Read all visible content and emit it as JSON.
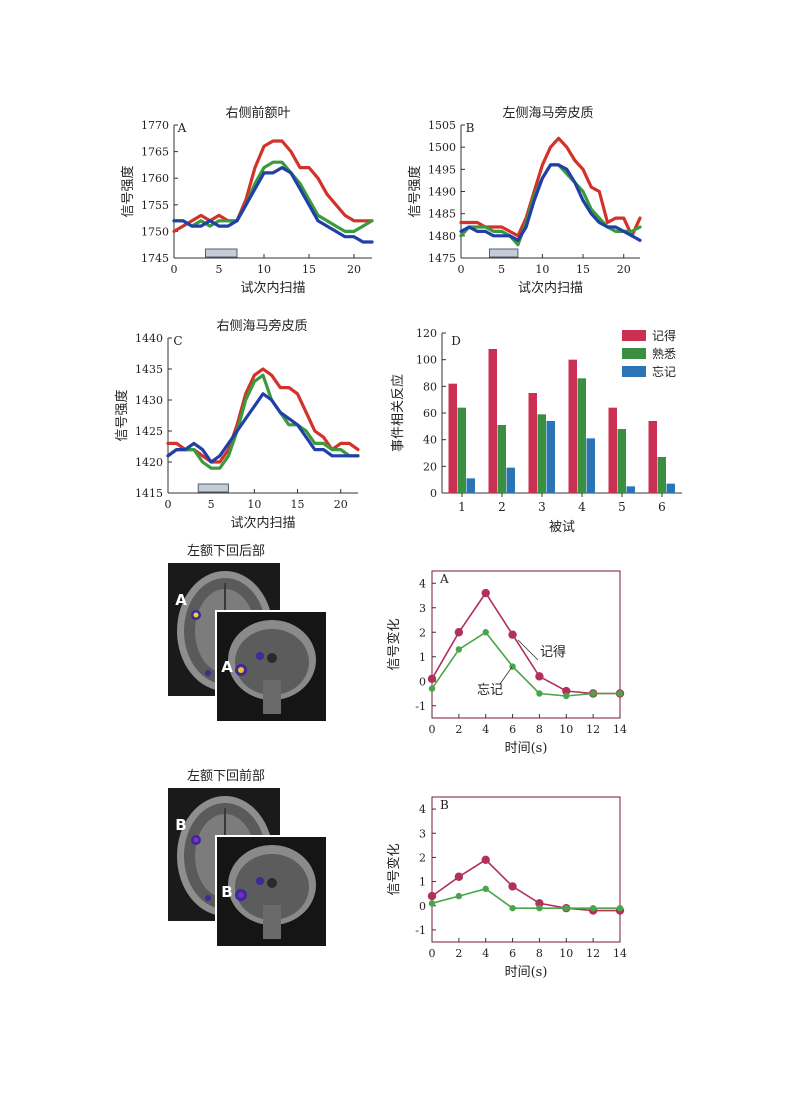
{
  "chart_data": [
    {
      "id": "A",
      "type": "line",
      "title": "右侧前额叶",
      "panel_label": "A",
      "xlabel": "试次内扫描",
      "ylabel": "信号强度",
      "xlim": [
        0,
        22
      ],
      "ylim": [
        1745,
        1770
      ],
      "xticks": [
        "0",
        "5",
        "10",
        "15",
        "20"
      ],
      "yticks": [
        "1745",
        "1750",
        "1755",
        "1760",
        "1765",
        "1770"
      ],
      "stimulus_bar": [
        3.5,
        7
      ],
      "series": [
        {
          "name": "记得",
          "color": "#d2322a",
          "x": [
            0,
            1,
            2,
            3,
            4,
            5,
            6,
            7,
            8,
            9,
            10,
            11,
            12,
            13,
            14,
            15,
            16,
            17,
            18,
            19,
            20,
            21,
            22
          ],
          "y": [
            1750,
            1751,
            1752,
            1753,
            1752,
            1753,
            1752,
            1752,
            1756,
            1762,
            1766,
            1767,
            1767,
            1765,
            1762,
            1762,
            1760,
            1757,
            1755,
            1753,
            1752,
            1752,
            1752
          ]
        },
        {
          "name": "熟悉",
          "color": "#3b9a3b",
          "x": [
            0,
            1,
            2,
            3,
            4,
            5,
            6,
            7,
            8,
            9,
            10,
            11,
            12,
            13,
            14,
            15,
            16,
            17,
            18,
            19,
            20,
            21,
            22
          ],
          "y": [
            1752,
            1752,
            1751,
            1752,
            1751,
            1752,
            1752,
            1752,
            1755,
            1759,
            1762,
            1763,
            1763,
            1761,
            1759,
            1756,
            1753,
            1752,
            1751,
            1750,
            1750,
            1751,
            1752
          ]
        },
        {
          "name": "忘记",
          "color": "#2040a8",
          "x": [
            0,
            1,
            2,
            3,
            4,
            5,
            6,
            7,
            8,
            9,
            10,
            11,
            12,
            13,
            14,
            15,
            16,
            17,
            18,
            19,
            20,
            21,
            22
          ],
          "y": [
            1752,
            1752,
            1751,
            1751,
            1752,
            1751,
            1751,
            1752,
            1755,
            1758,
            1761,
            1761,
            1762,
            1761,
            1758,
            1755,
            1752,
            1751,
            1750,
            1749,
            1749,
            1748,
            1748
          ]
        }
      ]
    },
    {
      "id": "B",
      "type": "line",
      "title": "左侧海马旁皮质",
      "panel_label": "B",
      "xlabel": "试次内扫描",
      "ylabel": "信号强度",
      "xlim": [
        0,
        22
      ],
      "ylim": [
        1475,
        1505
      ],
      "xticks": [
        "0",
        "5",
        "10",
        "15",
        "20"
      ],
      "yticks": [
        "1475",
        "1480",
        "1485",
        "1490",
        "1495",
        "1500",
        "1505"
      ],
      "stimulus_bar": [
        3.5,
        7
      ],
      "series": [
        {
          "name": "记得",
          "color": "#d2322a",
          "x": [
            0,
            1,
            2,
            3,
            4,
            5,
            6,
            7,
            8,
            9,
            10,
            11,
            12,
            13,
            14,
            15,
            16,
            17,
            18,
            19,
            20,
            21,
            22
          ],
          "y": [
            1483,
            1483,
            1483,
            1482,
            1482,
            1482,
            1481,
            1480,
            1484,
            1490,
            1496,
            1500,
            1502,
            1500,
            1497,
            1495,
            1491,
            1490,
            1483,
            1484,
            1484,
            1480,
            1484
          ]
        },
        {
          "name": "熟悉",
          "color": "#3b9a3b",
          "x": [
            0,
            1,
            2,
            3,
            4,
            5,
            6,
            7,
            8,
            9,
            10,
            11,
            12,
            13,
            14,
            15,
            16,
            17,
            18,
            19,
            20,
            21,
            22
          ],
          "y": [
            1480,
            1482,
            1482,
            1482,
            1481,
            1481,
            1480,
            1478,
            1483,
            1489,
            1493,
            1496,
            1496,
            1494,
            1492,
            1490,
            1486,
            1484,
            1482,
            1481,
            1481,
            1481,
            1482
          ]
        },
        {
          "name": "忘记",
          "color": "#2040a8",
          "x": [
            0,
            1,
            2,
            3,
            4,
            5,
            6,
            7,
            8,
            9,
            10,
            11,
            12,
            13,
            14,
            15,
            16,
            17,
            18,
            19,
            20,
            21,
            22
          ],
          "y": [
            1481,
            1482,
            1481,
            1481,
            1480,
            1480,
            1480,
            1479,
            1482,
            1488,
            1493,
            1496,
            1496,
            1495,
            1492,
            1488,
            1485,
            1483,
            1482,
            1482,
            1481,
            1480,
            1479
          ]
        }
      ]
    },
    {
      "id": "C",
      "type": "line",
      "title": "右侧海马旁皮质",
      "panel_label": "C",
      "xlabel": "试次内扫描",
      "ylabel": "信号强度",
      "xlim": [
        0,
        22
      ],
      "ylim": [
        1415,
        1440
      ],
      "xticks": [
        "0",
        "5",
        "10",
        "15",
        "20"
      ],
      "yticks": [
        "1415",
        "1420",
        "1425",
        "1430",
        "1435",
        "1440"
      ],
      "stimulus_bar": [
        3.5,
        7
      ],
      "series": [
        {
          "name": "记得",
          "color": "#d2322a",
          "x": [
            0,
            1,
            2,
            3,
            4,
            5,
            6,
            7,
            8,
            9,
            10,
            11,
            12,
            13,
            14,
            15,
            16,
            17,
            18,
            19,
            20,
            21,
            22
          ],
          "y": [
            1423,
            1423,
            1422,
            1422,
            1421,
            1420,
            1420,
            1422,
            1426,
            1431,
            1434,
            1435,
            1434,
            1432,
            1432,
            1431,
            1428,
            1425,
            1424,
            1422,
            1423,
            1423,
            1422
          ]
        },
        {
          "name": "熟悉",
          "color": "#3b9a3b",
          "x": [
            0,
            1,
            2,
            3,
            4,
            5,
            6,
            7,
            8,
            9,
            10,
            11,
            12,
            13,
            14,
            15,
            16,
            17,
            18,
            19,
            20,
            21,
            22
          ],
          "y": [
            1421,
            1422,
            1422,
            1422,
            1420,
            1419,
            1419,
            1421,
            1425,
            1430,
            1433,
            1434,
            1430,
            1428,
            1426,
            1426,
            1425,
            1423,
            1423,
            1422,
            1422,
            1421,
            1421
          ]
        },
        {
          "name": "忘记",
          "color": "#2040a8",
          "x": [
            0,
            1,
            2,
            3,
            4,
            5,
            6,
            7,
            8,
            9,
            10,
            11,
            12,
            13,
            14,
            15,
            16,
            17,
            18,
            19,
            20,
            21,
            22
          ],
          "y": [
            1421,
            1422,
            1422,
            1423,
            1422,
            1420,
            1421,
            1423,
            1425,
            1427,
            1429,
            1431,
            1430,
            1428,
            1427,
            1426,
            1424,
            1422,
            1422,
            1421,
            1421,
            1421,
            1421
          ]
        }
      ]
    },
    {
      "id": "D",
      "type": "bar",
      "panel_label": "D",
      "xlabel": "被试",
      "ylabel": "事件相关反应",
      "ylim": [
        0,
        120
      ],
      "yticks": [
        "0",
        "20",
        "40",
        "60",
        "80",
        "100",
        "120"
      ],
      "categories": [
        "1",
        "2",
        "3",
        "4",
        "5",
        "6"
      ],
      "series": [
        {
          "name": "记得",
          "color": "#c93052",
          "values": [
            82,
            108,
            75,
            100,
            64,
            54
          ]
        },
        {
          "name": "熟悉",
          "color": "#3a8f42",
          "values": [
            64,
            51,
            59,
            86,
            48,
            27
          ]
        },
        {
          "name": "忘记",
          "color": "#2c75b5",
          "values": [
            11,
            19,
            54,
            41,
            5,
            7
          ]
        }
      ]
    },
    {
      "id": "E",
      "type": "line",
      "panel_label": "A",
      "xlabel": "时间(s)",
      "ylabel": "信号变化",
      "xlim": [
        0,
        14
      ],
      "ylim": [
        -1.5,
        4.5
      ],
      "xticks": [
        "0",
        "2",
        "4",
        "6",
        "8",
        "10",
        "12",
        "14"
      ],
      "yticks": [
        "-1",
        "0",
        "1",
        "2",
        "3",
        "4"
      ],
      "series": [
        {
          "name": "记得",
          "color": "#b0325a",
          "x": [
            0,
            2,
            4,
            6,
            8,
            10,
            12,
            14
          ],
          "y": [
            0.1,
            2.0,
            3.6,
            1.9,
            0.2,
            -0.4,
            -0.5,
            -0.5
          ]
        },
        {
          "name": "忘记",
          "color": "#4aa54a",
          "x": [
            0,
            2,
            4,
            6,
            8,
            10,
            12,
            14
          ],
          "y": [
            -0.3,
            1.3,
            2.0,
            0.6,
            -0.5,
            -0.6,
            -0.5,
            -0.5
          ]
        }
      ]
    },
    {
      "id": "F",
      "type": "line",
      "panel_label": "B",
      "xlabel": "时间(s)",
      "ylabel": "信号变化",
      "xlim": [
        0,
        14
      ],
      "ylim": [
        -1.5,
        4.5
      ],
      "xticks": [
        "0",
        "2",
        "4",
        "6",
        "8",
        "10",
        "12",
        "14"
      ],
      "yticks": [
        "-1",
        "0",
        "1",
        "2",
        "3",
        "4"
      ],
      "series": [
        {
          "name": "记得",
          "color": "#b0325a",
          "x": [
            0,
            2,
            4,
            6,
            8,
            10,
            12,
            14
          ],
          "y": [
            0.4,
            1.2,
            1.9,
            0.8,
            0.1,
            -0.1,
            -0.2,
            -0.2
          ]
        },
        {
          "name": "忘记",
          "color": "#4aa54a",
          "x": [
            0,
            2,
            4,
            6,
            8,
            10,
            12,
            14
          ],
          "y": [
            0.1,
            0.4,
            0.7,
            -0.1,
            -0.1,
            -0.1,
            -0.1,
            -0.1
          ]
        }
      ]
    }
  ],
  "legend": {
    "remember": "记得",
    "familiar": "熟悉",
    "forget": "忘记"
  },
  "brain": {
    "title_top": "左额下回后部",
    "title_bottom": "左额下回前部",
    "label_top": "A",
    "label_bottom": "B"
  },
  "annotations": {
    "E_remember": "记得",
    "E_forget": "忘记"
  }
}
